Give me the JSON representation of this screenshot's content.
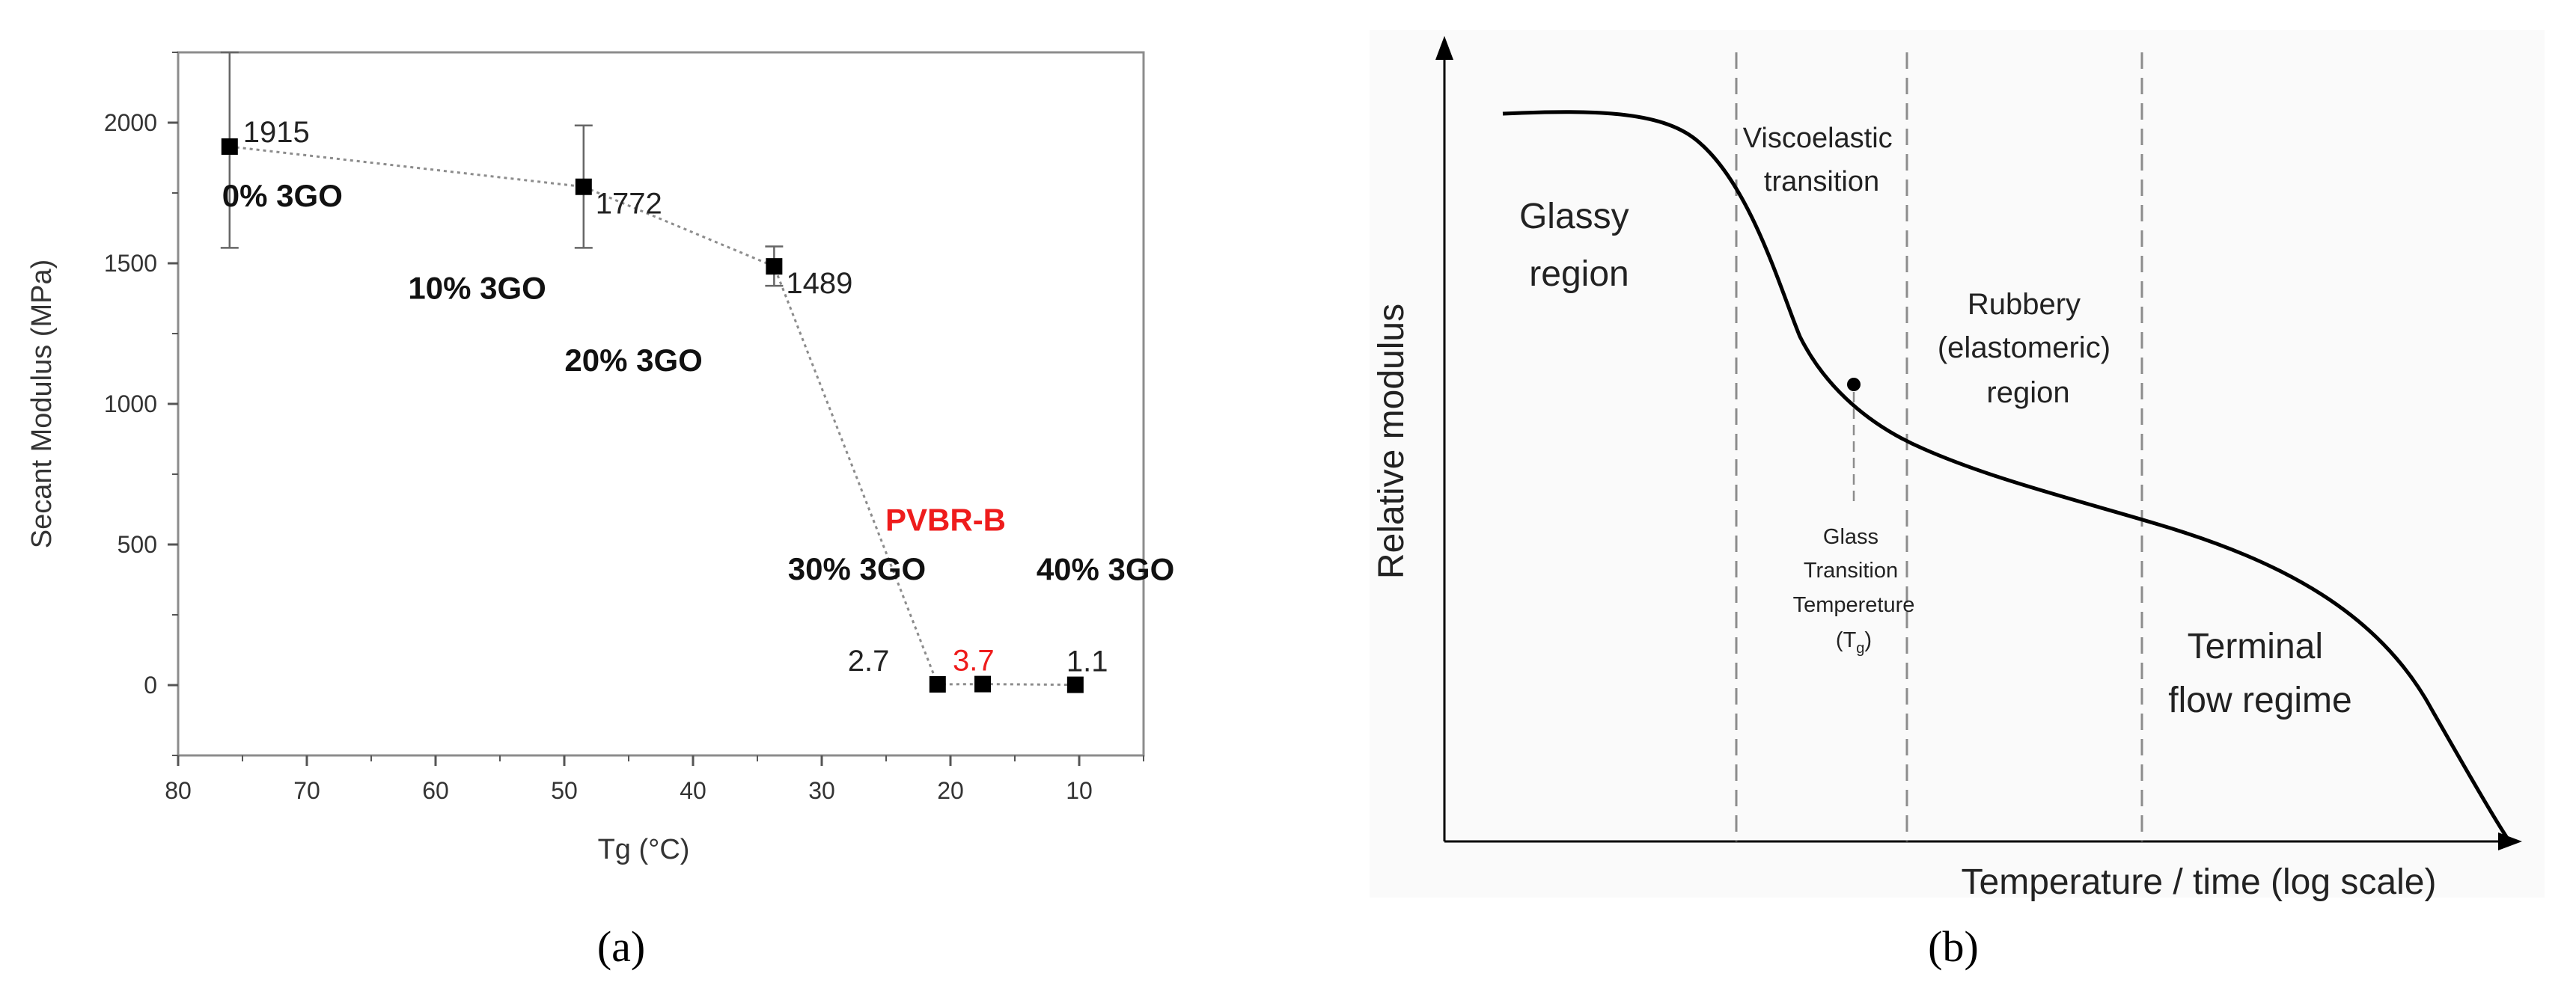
{
  "panels": {
    "a": {
      "caption": "(a)",
      "chart_data": {
        "type": "scatter",
        "xlabel": "Tg (°C)",
        "ylabel": "Secant Modulus (MPa)",
        "xlim": [
          80,
          5
        ],
        "ylim": [
          -250,
          2250
        ],
        "x_reversed": true,
        "grid": false,
        "xticks": [
          80,
          70,
          60,
          50,
          40,
          30,
          20,
          10
        ],
        "yticks": [
          0,
          500,
          1000,
          1500,
          2000
        ],
        "points": [
          {
            "x": 76,
            "y": 1915,
            "value_label": "1915",
            "err_low": 1555,
            "err_high": 2250,
            "sample": "0% 3GO",
            "highlight": false
          },
          {
            "x": 48.5,
            "y": 1772,
            "value_label": "1772",
            "err_low": 1555,
            "err_high": 1990,
            "sample": "10% 3GO",
            "highlight": false
          },
          {
            "x": 33.7,
            "y": 1489,
            "value_label": "1489",
            "err_low": 1420,
            "err_high": 1560,
            "sample": "20% 3GO",
            "highlight": false
          },
          {
            "x": 21,
            "y": 2.7,
            "value_label": "2.7",
            "sample": "30% 3GO",
            "highlight": false
          },
          {
            "x": 17.5,
            "y": 3.7,
            "value_label": "3.7",
            "sample": "PVBR-B",
            "highlight": true
          },
          {
            "x": 10.3,
            "y": 1.1,
            "value_label": "1.1",
            "sample": "40% 3GO",
            "highlight": false
          }
        ],
        "colors": {
          "marker": "#000000",
          "connector": "#8c8c8c",
          "highlight": "#ee1c1c"
        }
      }
    },
    "b": {
      "caption": "(b)",
      "chart_data": {
        "type": "line",
        "xlabel": "Temperature / time (log scale)",
        "ylabel": "Relative modulus",
        "regions": [
          {
            "lines": [
              "Glassy",
              "region"
            ]
          },
          {
            "lines": [
              "Viscoelastic",
              "transition"
            ]
          },
          {
            "lines": [
              "Rubbery",
              "(elastomeric)",
              "region"
            ]
          },
          {
            "lines": [
              "Terminal",
              "flow regime"
            ]
          }
        ],
        "tg_annotation": [
          "Glass",
          "Transition",
          "Tempereture"
        ],
        "tg_symbol": {
          "base": "(T",
          "subscript": "g",
          "close": ")"
        },
        "colors": {
          "curve": "#000000",
          "dashed": "#8c8c8c",
          "background": "#fafafa"
        }
      }
    }
  }
}
